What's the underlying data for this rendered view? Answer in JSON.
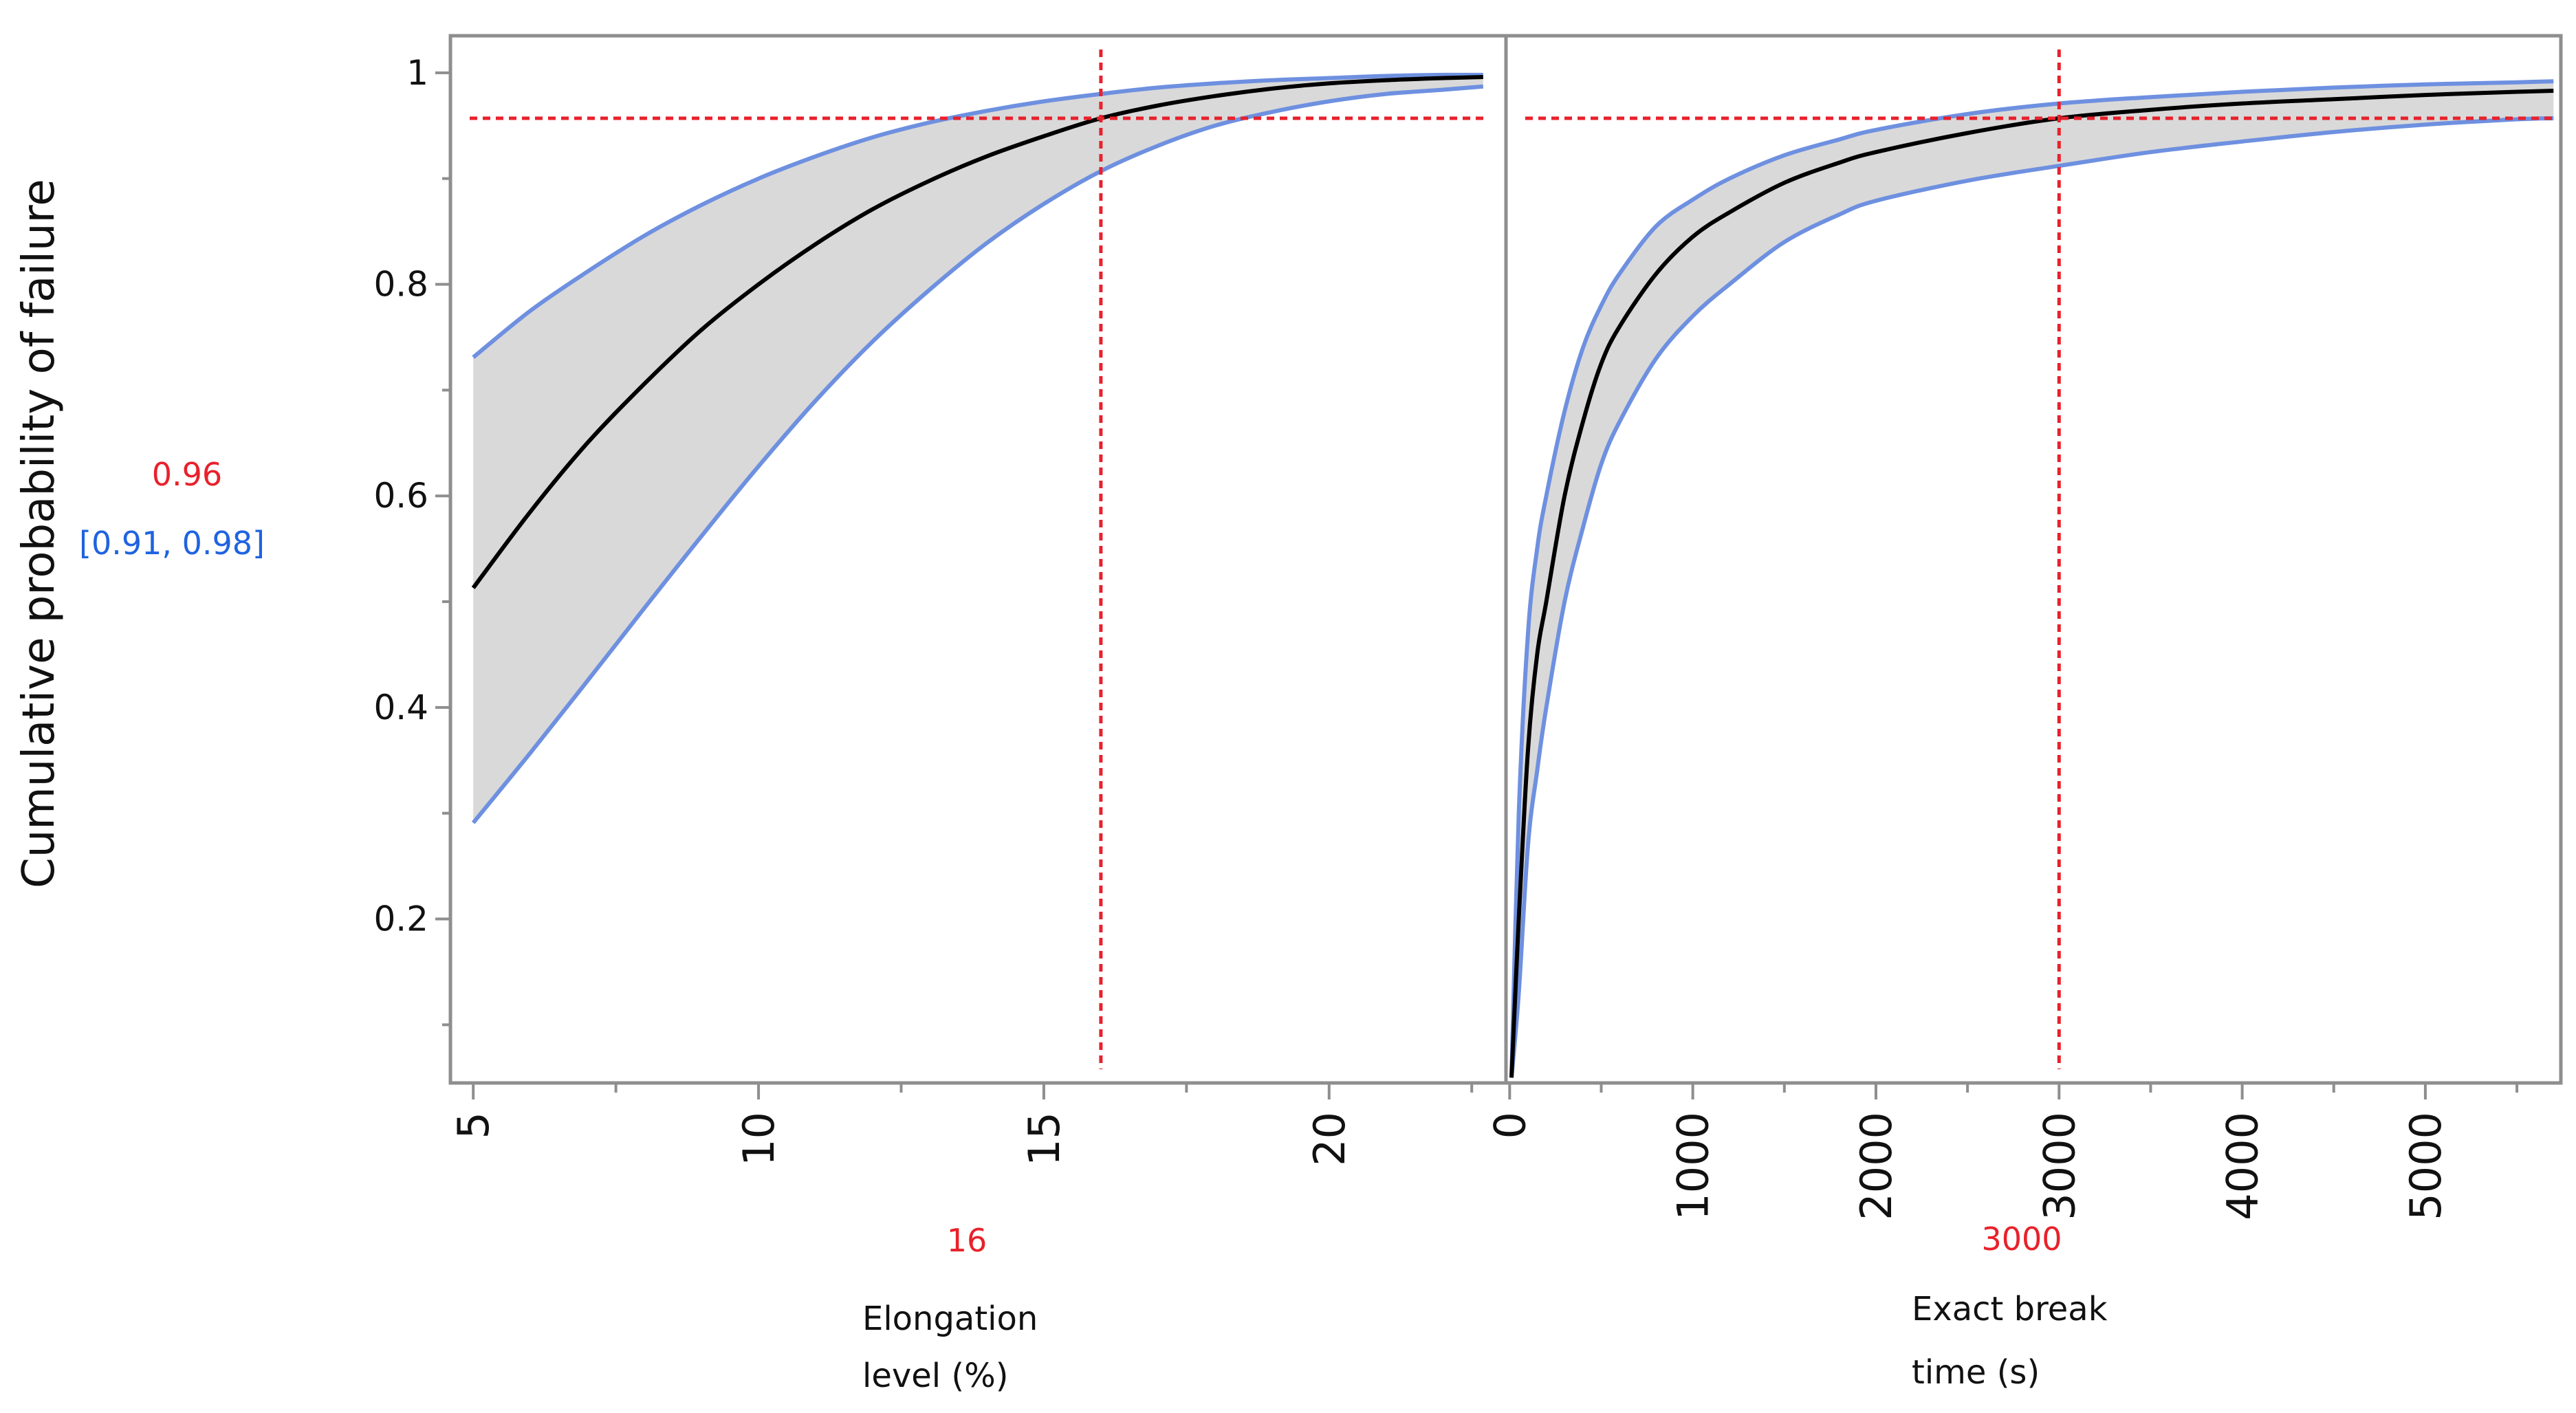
{
  "colors": {
    "frame": "#8e8e8e",
    "curve": "#000000",
    "band_fill": "#d9d9d9",
    "band_edge": "#6e90e0",
    "crosshair": "#e8212b",
    "ci_text": "#1f63e0"
  },
  "readout": {
    "y_value": "0.96",
    "ci": "[0.91, 0.98]"
  },
  "chart_data": [
    {
      "type": "line",
      "panel": "left",
      "title": "",
      "xlabel": "Elongation level (%)",
      "xlabel_lines": [
        "Elongation",
        "level (%)"
      ],
      "ylabel": "Cumulative probability of failure",
      "xlim": [
        4.6,
        23.1
      ],
      "ylim": [
        0.045,
        1.035
      ],
      "x_ticks": [
        5,
        10,
        15,
        20
      ],
      "x_tick_labels": [
        "5",
        "10",
        "15",
        "20"
      ],
      "x_minor_ticks": [
        7.5,
        12.5,
        17.5,
        22.5
      ],
      "y_ticks": [
        0.2,
        0.4,
        0.6,
        0.8,
        1
      ],
      "y_tick_labels": [
        "0.2",
        "0.4",
        "0.6",
        "0.8",
        "1"
      ],
      "y_minor_ticks": [
        0.1,
        0.3,
        0.5,
        0.7,
        0.9
      ],
      "crosshair": {
        "x": 16,
        "y": 0.957,
        "x_label": "16"
      },
      "series": [
        {
          "name": "Estimate",
          "x": [
            5,
            6,
            7,
            8,
            9,
            10,
            11,
            12,
            13,
            14,
            15,
            16,
            17,
            18,
            19,
            20,
            21,
            22,
            22.7
          ],
          "y": [
            0.513,
            0.585,
            0.65,
            0.706,
            0.757,
            0.8,
            0.838,
            0.871,
            0.898,
            0.921,
            0.94,
            0.957,
            0.969,
            0.978,
            0.985,
            0.99,
            0.993,
            0.995,
            0.996
          ]
        },
        {
          "name": "Upper confidence limit",
          "x": [
            5,
            6,
            7,
            8,
            9,
            10,
            11,
            12,
            13,
            14,
            15,
            16,
            17,
            18,
            19,
            20,
            21,
            22,
            22.7
          ],
          "y": [
            0.731,
            0.775,
            0.812,
            0.846,
            0.875,
            0.9,
            0.921,
            0.939,
            0.953,
            0.964,
            0.973,
            0.98,
            0.986,
            0.99,
            0.993,
            0.995,
            0.997,
            0.998,
            0.998
          ]
        },
        {
          "name": "Lower confidence limit",
          "x": [
            5,
            6,
            7,
            8,
            9,
            10,
            11,
            12,
            13,
            14,
            15,
            16,
            17,
            18,
            19,
            20,
            21,
            22,
            22.7
          ],
          "y": [
            0.291,
            0.357,
            0.425,
            0.494,
            0.562,
            0.628,
            0.69,
            0.746,
            0.795,
            0.839,
            0.876,
            0.907,
            0.931,
            0.95,
            0.963,
            0.973,
            0.98,
            0.984,
            0.987
          ]
        }
      ]
    },
    {
      "type": "line",
      "panel": "right",
      "title": "",
      "xlabel": "Exact break time (s)",
      "xlabel_lines": [
        "Exact break",
        "time (s)"
      ],
      "ylabel": "Cumulative probability of failure",
      "xlim": [
        -20,
        5740
      ],
      "ylim": [
        0.045,
        1.035
      ],
      "x_ticks": [
        0,
        1000,
        2000,
        3000,
        4000,
        5000
      ],
      "x_tick_labels": [
        "0",
        "1000",
        "2000",
        "3000",
        "4000",
        "5000"
      ],
      "x_minor_ticks": [
        500,
        1500,
        2500,
        3500,
        4500,
        5500
      ],
      "crosshair": {
        "x": 3000,
        "y": 0.957,
        "x_label": "3000"
      },
      "series": [
        {
          "name": "Estimate",
          "x": [
            10,
            50,
            100,
            150,
            200,
            300,
            400,
            500,
            600,
            800,
            1000,
            1200,
            1500,
            1800,
            2000,
            2500,
            3000,
            3500,
            4000,
            4500,
            5000,
            5500,
            5700
          ],
          "y": [
            0.05,
            0.2,
            0.36,
            0.45,
            0.5,
            0.6,
            0.67,
            0.725,
            0.76,
            0.81,
            0.845,
            0.868,
            0.896,
            0.915,
            0.925,
            0.943,
            0.957,
            0.965,
            0.971,
            0.975,
            0.979,
            0.982,
            0.983
          ]
        },
        {
          "name": "Upper confidence limit",
          "x": [
            10,
            50,
            100,
            150,
            200,
            300,
            400,
            500,
            600,
            800,
            1000,
            1200,
            1500,
            1800,
            2000,
            2500,
            3000,
            3500,
            4000,
            4500,
            5000,
            5500,
            5700
          ],
          "y": [
            0.05,
            0.3,
            0.47,
            0.55,
            0.6,
            0.68,
            0.74,
            0.78,
            0.81,
            0.855,
            0.88,
            0.9,
            0.922,
            0.937,
            0.946,
            0.961,
            0.971,
            0.977,
            0.982,
            0.986,
            0.989,
            0.991,
            0.992
          ]
        },
        {
          "name": "Lower confidence limit",
          "x": [
            10,
            50,
            100,
            150,
            200,
            300,
            400,
            500,
            600,
            800,
            1000,
            1200,
            1500,
            1800,
            2000,
            2500,
            3000,
            3500,
            4000,
            4500,
            5000,
            5500,
            5700
          ],
          "y": [
            0.05,
            0.13,
            0.27,
            0.34,
            0.4,
            0.5,
            0.57,
            0.63,
            0.67,
            0.73,
            0.77,
            0.8,
            0.84,
            0.866,
            0.879,
            0.898,
            0.912,
            0.925,
            0.935,
            0.944,
            0.951,
            0.956,
            0.957
          ]
        }
      ]
    }
  ]
}
